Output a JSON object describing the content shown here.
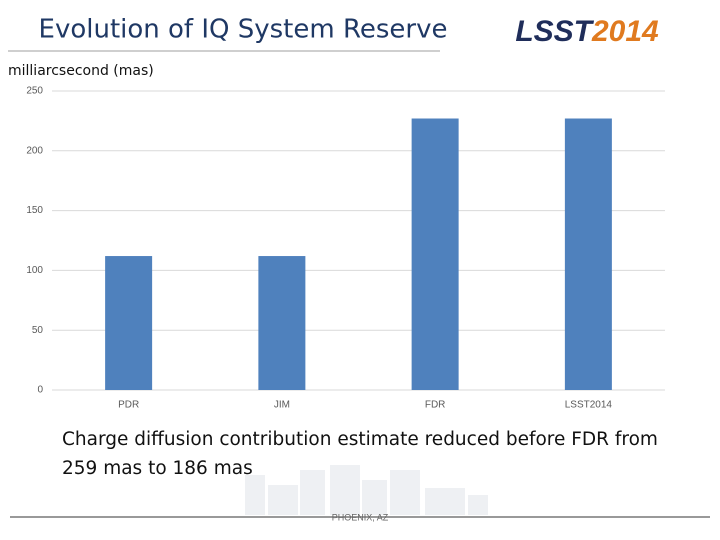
{
  "slide": {
    "logo": [
      "LSST",
      "2014"
    ],
    "caption": "Charge diffusion contribution estimate reduced before FDR from 259 mas to 186 mas",
    "footer": "PHOENIX, AZ"
  },
  "chart_data": {
    "type": "bar",
    "title": "Evolution of IQ System Reserve",
    "y_label": "milliarcsecond (mas)",
    "categories": [
      "PDR",
      "JIM",
      "FDR",
      "LSST2014"
    ],
    "values": [
      112,
      112,
      227,
      227
    ],
    "color": "#4f81bd",
    "ylim": [
      0,
      250
    ],
    "yticks": [
      0,
      50,
      100,
      150,
      200,
      250
    ],
    "grid": true
  }
}
